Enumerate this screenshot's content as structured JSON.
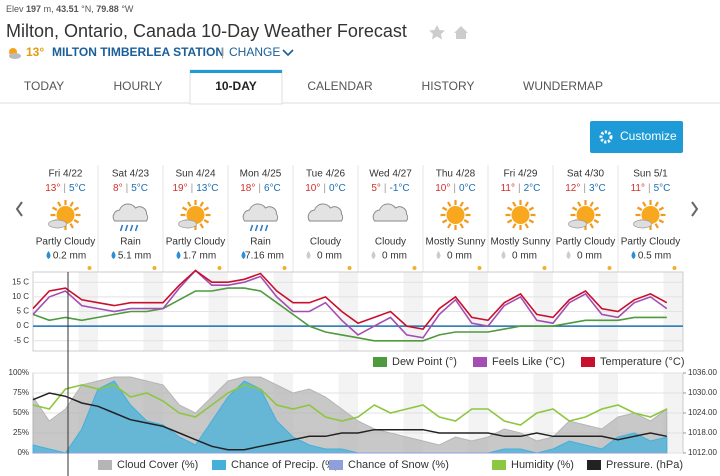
{
  "header": {
    "elev_label": "Elev",
    "elev": "197",
    "elev_unit": "m,",
    "lat": "43.51",
    "lat_unit": "°N,",
    "lon": "79.88",
    "lon_unit": "°W",
    "title": "Milton, Ontario, Canada 10-Day Weather Forecast",
    "current_temp": "13°",
    "station": "MILTON TIMBERLEA STATION",
    "separator": "|",
    "change": "CHANGE"
  },
  "tabs": [
    "TODAY",
    "HOURLY",
    "10-DAY",
    "CALENDAR",
    "HISTORY",
    "WUNDERMAP"
  ],
  "active_tab": 2,
  "customize": "Customize",
  "forecast": {
    "separator": "|",
    "days": [
      {
        "day": "Fri 4/22",
        "high": "13°",
        "low": "5°C",
        "condition": "Partly Cloudy",
        "precip": "0.2 mm"
      },
      {
        "day": "Sat 4/23",
        "high": "8°",
        "low": "5°C",
        "condition": "Rain",
        "precip": "5.1 mm"
      },
      {
        "day": "Sun 4/24",
        "high": "19°",
        "low": "13°C",
        "condition": "Partly Cloudy",
        "precip": "1.7 mm"
      },
      {
        "day": "Mon 4/25",
        "high": "18°",
        "low": "6°C",
        "condition": "Rain",
        "precip": "7.16 mm"
      },
      {
        "day": "Tue 4/26",
        "high": "10°",
        "low": "0°C",
        "condition": "Cloudy",
        "precip": "0 mm"
      },
      {
        "day": "Wed 4/27",
        "high": "5°",
        "low": "-1°C",
        "condition": "Cloudy",
        "precip": "0 mm"
      },
      {
        "day": "Thu 4/28",
        "high": "10°",
        "low": "0°C",
        "condition": "Mostly Sunny",
        "precip": "0 mm"
      },
      {
        "day": "Fri 4/29",
        "high": "11°",
        "low": "2°C",
        "condition": "Mostly Sunny",
        "precip": "0 mm"
      },
      {
        "day": "Sat 4/30",
        "high": "12°",
        "low": "3°C",
        "condition": "Partly Cloudy",
        "precip": "0 mm"
      },
      {
        "day": "Sun 5/1",
        "high": "11°",
        "low": "5°C",
        "condition": "Partly Cloudy",
        "precip": "0.5 mm"
      }
    ]
  },
  "chart_data": [
    {
      "type": "line",
      "x": [
        0,
        6,
        12,
        18,
        24,
        30,
        36,
        42,
        48,
        54,
        60,
        66,
        72,
        78,
        84,
        90,
        96,
        102,
        108,
        114,
        120,
        126,
        132,
        138,
        144,
        150,
        156,
        162,
        168,
        174,
        180,
        186,
        192,
        198,
        204,
        210,
        216,
        222,
        228,
        234
      ],
      "xlim": [
        0,
        240
      ],
      "ylim": [
        -8.5,
        18.5
      ],
      "yticks": [
        {
          "value": 15,
          "label": "15 C"
        },
        {
          "value": 10,
          "label": "10 C"
        },
        {
          "value": 5,
          "label": "5 C"
        },
        {
          "value": 0,
          "label": "0 C"
        },
        {
          "value": -5,
          "label": "-5 C"
        }
      ],
      "series": [
        {
          "name": "Dew Point (°)",
          "color": "#4e9a3e",
          "values": [
            4,
            2,
            3,
            2,
            3,
            4,
            5,
            5,
            6,
            9,
            12,
            12,
            13,
            13,
            12,
            8,
            4,
            0,
            -2,
            -3,
            -4,
            -5,
            -5,
            -5,
            -5,
            -3,
            -2,
            -2,
            -2,
            -1,
            0,
            0,
            0,
            1,
            2,
            2,
            2,
            3,
            3,
            3
          ]
        },
        {
          "name": "Feels Like (°C)",
          "color": "#a44db4",
          "values": [
            4,
            10,
            12,
            7,
            6,
            5,
            6,
            6,
            6,
            13,
            19,
            14,
            14,
            15,
            17,
            10,
            5,
            5,
            8,
            2,
            -3,
            0,
            3,
            -3,
            -4,
            4,
            9,
            1,
            0,
            7,
            10,
            2,
            1,
            8,
            11,
            4,
            3,
            8,
            10,
            6
          ]
        },
        {
          "name": "Temperature (°C)",
          "color": "#c8102e",
          "values": [
            6,
            12,
            13,
            9,
            8,
            7,
            8,
            8,
            8,
            14,
            19,
            15,
            15,
            16,
            18,
            12,
            8,
            8,
            10,
            5,
            1,
            3,
            5,
            0,
            -1,
            6,
            10,
            3,
            2,
            8,
            11,
            4,
            3,
            9,
            12,
            6,
            5,
            9,
            11,
            8
          ]
        }
      ]
    },
    {
      "type": "area",
      "x": [
        0,
        6,
        12,
        18,
        24,
        30,
        36,
        42,
        48,
        54,
        60,
        66,
        72,
        78,
        84,
        90,
        96,
        102,
        108,
        114,
        120,
        126,
        132,
        138,
        144,
        150,
        156,
        162,
        168,
        174,
        180,
        186,
        192,
        198,
        204,
        210,
        216,
        222,
        228,
        234
      ],
      "xlim": [
        0,
        240
      ],
      "ylim": [
        0,
        100
      ],
      "yticks": [
        {
          "value": 100,
          "label": "100%"
        },
        {
          "value": 75,
          "label": "75%"
        },
        {
          "value": 50,
          "label": "50%"
        },
        {
          "value": 25,
          "label": "25%"
        },
        {
          "value": 0,
          "label": "0%"
        }
      ],
      "y2lim": [
        1012,
        1036
      ],
      "y2ticks": [
        {
          "value": 1036,
          "label": "1036.00"
        },
        {
          "value": 1030,
          "label": "1030.00"
        },
        {
          "value": 1024,
          "label": "1024.00"
        },
        {
          "value": 1018,
          "label": "1018.00"
        },
        {
          "value": 1012,
          "label": "1012.00"
        }
      ],
      "series": [
        {
          "name": "Cloud Cover (%)",
          "color": "#b5b5b5",
          "kind": "area",
          "values": [
            70,
            40,
            55,
            85,
            90,
            95,
            95,
            90,
            85,
            60,
            50,
            70,
            90,
            95,
            95,
            85,
            75,
            80,
            70,
            55,
            40,
            30,
            25,
            20,
            15,
            10,
            20,
            15,
            20,
            30,
            25,
            15,
            20,
            40,
            35,
            30,
            45,
            50,
            40,
            55
          ]
        },
        {
          "name": "Chance of Precip. (%)",
          "color": "#45b0da",
          "kind": "area",
          "values": [
            10,
            5,
            0,
            30,
            80,
            90,
            60,
            40,
            35,
            20,
            10,
            40,
            70,
            90,
            80,
            40,
            20,
            10,
            5,
            5,
            0,
            0,
            0,
            0,
            0,
            0,
            0,
            0,
            0,
            5,
            5,
            0,
            5,
            15,
            10,
            5,
            20,
            25,
            15,
            20
          ]
        },
        {
          "name": "Chance of Snow (%)",
          "color": "#8e9fd9",
          "kind": "area",
          "values": [
            0,
            0,
            0,
            0,
            0,
            0,
            0,
            0,
            0,
            0,
            0,
            0,
            0,
            0,
            0,
            0,
            0,
            0,
            0,
            0,
            0,
            0,
            0,
            0,
            0,
            0,
            0,
            0,
            0,
            0,
            0,
            0,
            0,
            0,
            0,
            0,
            0,
            0,
            0,
            0
          ]
        },
        {
          "name": "Humidity (%)",
          "color": "#8dc63f",
          "kind": "line",
          "values": [
            60,
            55,
            80,
            85,
            80,
            85,
            70,
            75,
            65,
            50,
            45,
            60,
            75,
            85,
            80,
            60,
            55,
            60,
            45,
            40,
            45,
            60,
            50,
            55,
            60,
            45,
            40,
            55,
            55,
            40,
            35,
            50,
            55,
            40,
            45,
            55,
            60,
            50,
            45,
            55
          ]
        },
        {
          "name": "Pressure. (hPa)",
          "color": "#222222",
          "kind": "line",
          "axis": "y2",
          "values": [
            1028,
            1030,
            1029,
            1027,
            1026,
            1024,
            1022,
            1021,
            1020,
            1018,
            1016,
            1014,
            1013,
            1013,
            1014,
            1015,
            1016,
            1017,
            1017,
            1018,
            1018,
            1019,
            1019,
            1019,
            1019,
            1018,
            1018,
            1018,
            1018,
            1017,
            1017,
            1018,
            1017,
            1017,
            1017,
            1017,
            1016,
            1017,
            1018,
            1017
          ]
        }
      ]
    }
  ]
}
